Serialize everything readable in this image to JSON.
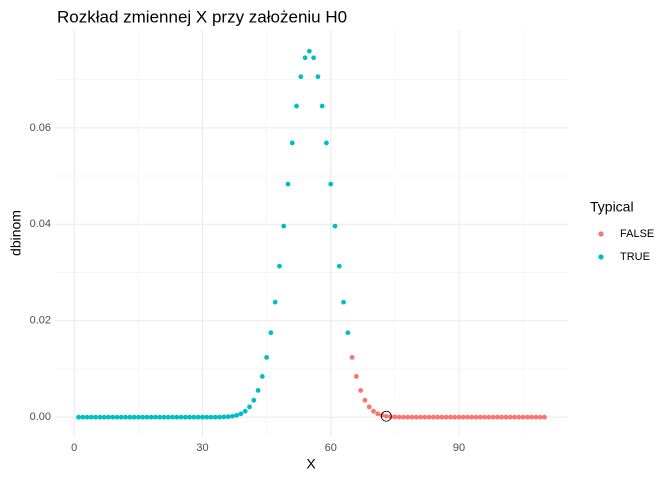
{
  "chart_data": {
    "type": "scatter",
    "title": "Rozkład zmiennej X przy założeniu H0",
    "x_label": "X",
    "y_label": "dbinom",
    "legend_title": "Typical",
    "legend_position": "right",
    "series": [
      {
        "name": "FALSE",
        "color": "#F8766D",
        "x": [
          65,
          66,
          67,
          68,
          69,
          70,
          71,
          72,
          73,
          74,
          75,
          76,
          77,
          78,
          79,
          80,
          81,
          82,
          83,
          84,
          85,
          86,
          87,
          88,
          89,
          90,
          91,
          92,
          93,
          94,
          95,
          96,
          97,
          98,
          99,
          100,
          101,
          102,
          103,
          104,
          105,
          106,
          107,
          108,
          109,
          110
        ],
        "values": [
          0.0124,
          0.00845,
          0.00555,
          0.00351,
          0.00214,
          0.00125,
          0.0007,
          0.00038,
          0.0002,
          0.0001,
          5e-05,
          2e-05,
          1e-05,
          0,
          0,
          0,
          0,
          0,
          0,
          0,
          0,
          0,
          0,
          0,
          0,
          0,
          0,
          0,
          0,
          0,
          0,
          0,
          0,
          0,
          0,
          0,
          0,
          0,
          0,
          0,
          0,
          0,
          0,
          0,
          0,
          0
        ]
      },
      {
        "name": "TRUE",
        "color": "#00BFC4",
        "x": [
          1,
          2,
          3,
          4,
          5,
          6,
          7,
          8,
          9,
          10,
          11,
          12,
          13,
          14,
          15,
          16,
          17,
          18,
          19,
          20,
          21,
          22,
          23,
          24,
          25,
          26,
          27,
          28,
          29,
          30,
          31,
          32,
          33,
          34,
          35,
          36,
          37,
          38,
          39,
          40,
          41,
          42,
          43,
          44,
          45,
          46,
          47,
          48,
          49,
          50,
          51,
          52,
          53,
          54,
          55,
          56,
          57,
          58,
          59,
          60,
          61,
          62,
          63,
          64
        ],
        "values": [
          0,
          0,
          0,
          0,
          0,
          0,
          0,
          0,
          0,
          0,
          0,
          0,
          0,
          0,
          0,
          0,
          0,
          0,
          0,
          0,
          0,
          0,
          0,
          0,
          0,
          0,
          0,
          0,
          0,
          0,
          0,
          0,
          1e-05,
          2e-05,
          5e-05,
          0.0001,
          0.0002,
          0.00038,
          0.0007,
          0.00125,
          0.00214,
          0.00351,
          0.00555,
          0.00845,
          0.0124,
          0.01752,
          0.02386,
          0.03132,
          0.03963,
          0.04834,
          0.05688,
          0.06453,
          0.07062,
          0.07454,
          0.0759,
          0.07454,
          0.07062,
          0.06453,
          0.05688,
          0.04834,
          0.03963,
          0.03132,
          0.02386,
          0.01752
        ]
      }
    ],
    "highlight": {
      "x": 73,
      "y": 0.0002
    },
    "xlim": [
      -4.5,
      115.5
    ],
    "xticks": [
      0,
      30,
      60,
      90
    ],
    "x_minor_breaks": [
      15,
      45,
      75,
      105
    ],
    "ylim": [
      -0.0039,
      0.0803
    ],
    "yticks": [
      {
        "value": 0,
        "label": "0.00"
      },
      {
        "value": 0.02,
        "label": "0.02"
      },
      {
        "value": 0.04,
        "label": "0.04"
      },
      {
        "value": 0.06,
        "label": "0.06"
      }
    ],
    "y_minor_breaks": [
      0.01,
      0.03,
      0.05,
      0.07
    ],
    "grid": true
  }
}
